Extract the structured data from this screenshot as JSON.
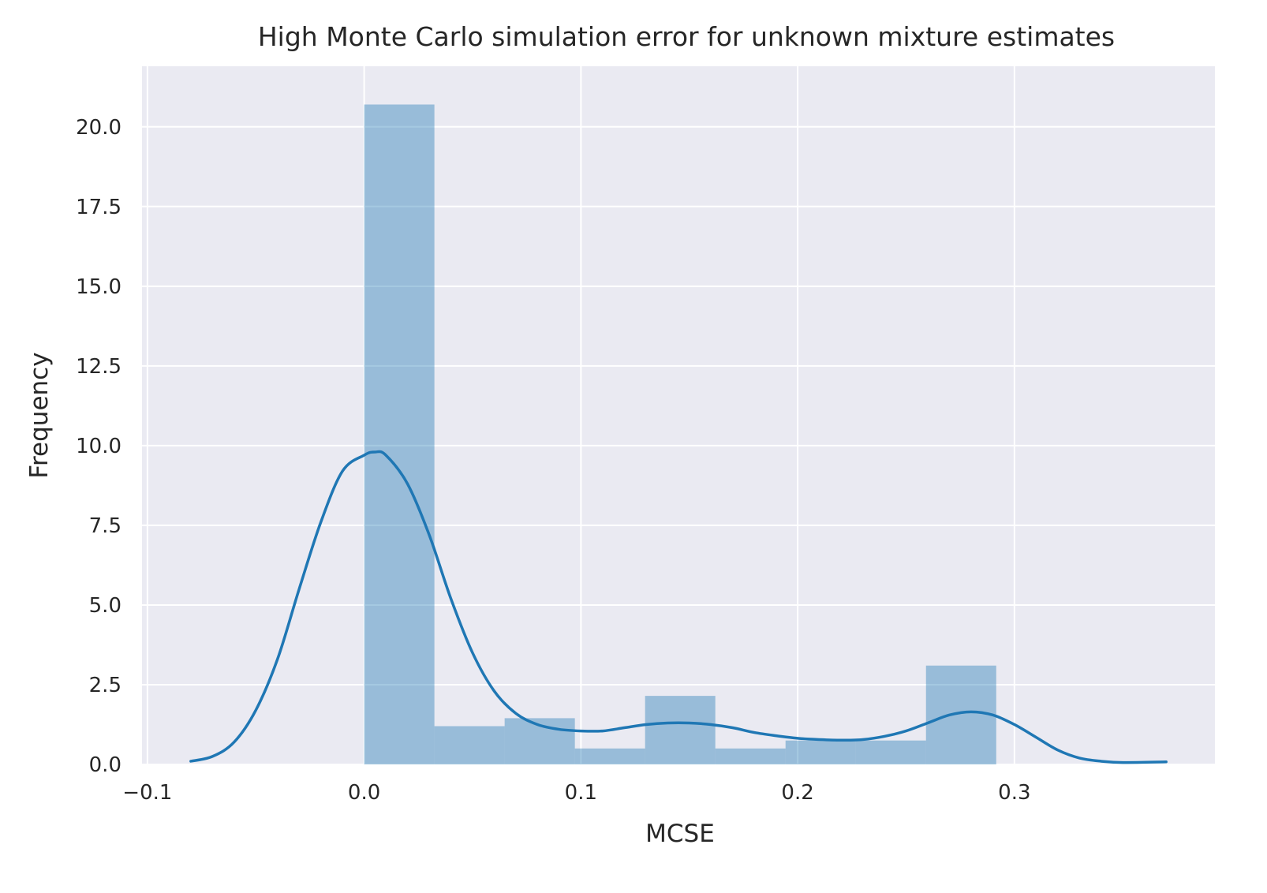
{
  "chart_data": {
    "type": "bar",
    "title": "High Monte Carlo simulation error for unknown mixture estimates",
    "xlabel": "MCSE",
    "ylabel": "Frequency",
    "xlim": [
      -0.1025,
      0.3925
    ],
    "ylim": [
      0,
      21.9
    ],
    "x_ticks": [
      -0.1,
      0.0,
      0.1,
      0.2,
      0.3
    ],
    "x_tick_labels": [
      "−0.1",
      "0.0",
      "0.1",
      "0.2",
      "0.3"
    ],
    "y_ticks": [
      0,
      2.5,
      5,
      7.5,
      10,
      12.5,
      15,
      17.5,
      20
    ],
    "y_tick_labels": [
      "0.0",
      "2.5",
      "5.0",
      "7.5",
      "10.0",
      "12.5",
      "15.0",
      "17.5",
      "20.0"
    ],
    "grid": true,
    "background_color": "#eaeaf2",
    "grid_color": "#ffffff",
    "histogram": {
      "color": "#1f77b4",
      "opacity": 0.4,
      "bin_edges": [
        0.0,
        0.0324,
        0.0648,
        0.0972,
        0.1296,
        0.162,
        0.1944,
        0.2268,
        0.2592,
        0.2916
      ],
      "values": [
        20.7,
        1.2,
        1.45,
        0.5,
        2.15,
        0.5,
        0.75,
        0.75,
        3.1
      ]
    },
    "kde": {
      "color": "#1f77b4",
      "x": [
        -0.08,
        -0.07,
        -0.06,
        -0.05,
        -0.04,
        -0.03,
        -0.02,
        -0.01,
        0.0,
        0.005,
        0.01,
        0.02,
        0.03,
        0.04,
        0.05,
        0.06,
        0.07,
        0.08,
        0.09,
        0.1,
        0.11,
        0.12,
        0.13,
        0.14,
        0.15,
        0.16,
        0.17,
        0.18,
        0.19,
        0.2,
        0.21,
        0.22,
        0.23,
        0.24,
        0.25,
        0.26,
        0.27,
        0.28,
        0.29,
        0.3,
        0.31,
        0.32,
        0.33,
        0.34,
        0.35,
        0.37
      ],
      "y": [
        0.1,
        0.25,
        0.7,
        1.7,
        3.3,
        5.5,
        7.6,
        9.2,
        9.7,
        9.8,
        9.7,
        8.8,
        7.2,
        5.2,
        3.5,
        2.3,
        1.6,
        1.25,
        1.1,
        1.05,
        1.05,
        1.15,
        1.25,
        1.3,
        1.3,
        1.25,
        1.15,
        1.0,
        0.9,
        0.82,
        0.78,
        0.76,
        0.78,
        0.88,
        1.05,
        1.3,
        1.55,
        1.65,
        1.55,
        1.25,
        0.85,
        0.45,
        0.2,
        0.1,
        0.06,
        0.08
      ]
    }
  }
}
